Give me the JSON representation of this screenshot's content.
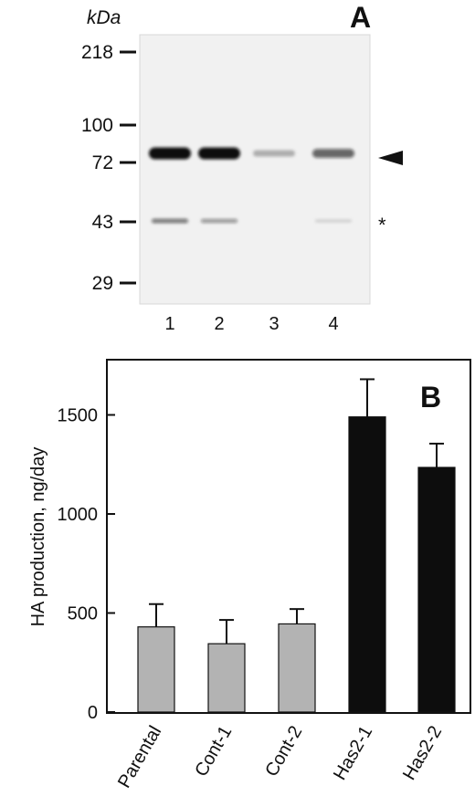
{
  "panel_a": {
    "panel_label": "A",
    "unit_label": "kDa",
    "markers": [
      "218",
      "100",
      "72",
      "43",
      "29"
    ],
    "lanes": [
      "1",
      "2",
      "3",
      "4"
    ],
    "main_band_marker": "arrowhead",
    "minor_band_marker": "*",
    "band_intensity_72kDa": [
      1.0,
      1.0,
      0.15,
      0.55
    ],
    "band_intensity_43kDa": [
      0.55,
      0.4,
      0.0,
      0.05
    ]
  },
  "chart_data": {
    "type": "bar",
    "panel_label": "B",
    "categories": [
      "Parental",
      "Cont-1",
      "Cont-2",
      "Has2-1",
      "Has2-2"
    ],
    "values": [
      430,
      345,
      445,
      1490,
      1235
    ],
    "errors": [
      115,
      120,
      75,
      190,
      120
    ],
    "bar_colors": [
      "#b3b3b3",
      "#b3b3b3",
      "#b3b3b3",
      "#0d0d0d",
      "#0d0d0d"
    ],
    "ylabel": "HA production, ng/day",
    "xlabel": "",
    "ylim": [
      0,
      1700
    ],
    "yticks": [
      "0",
      "500",
      "1000",
      "1500"
    ],
    "grid": false
  }
}
